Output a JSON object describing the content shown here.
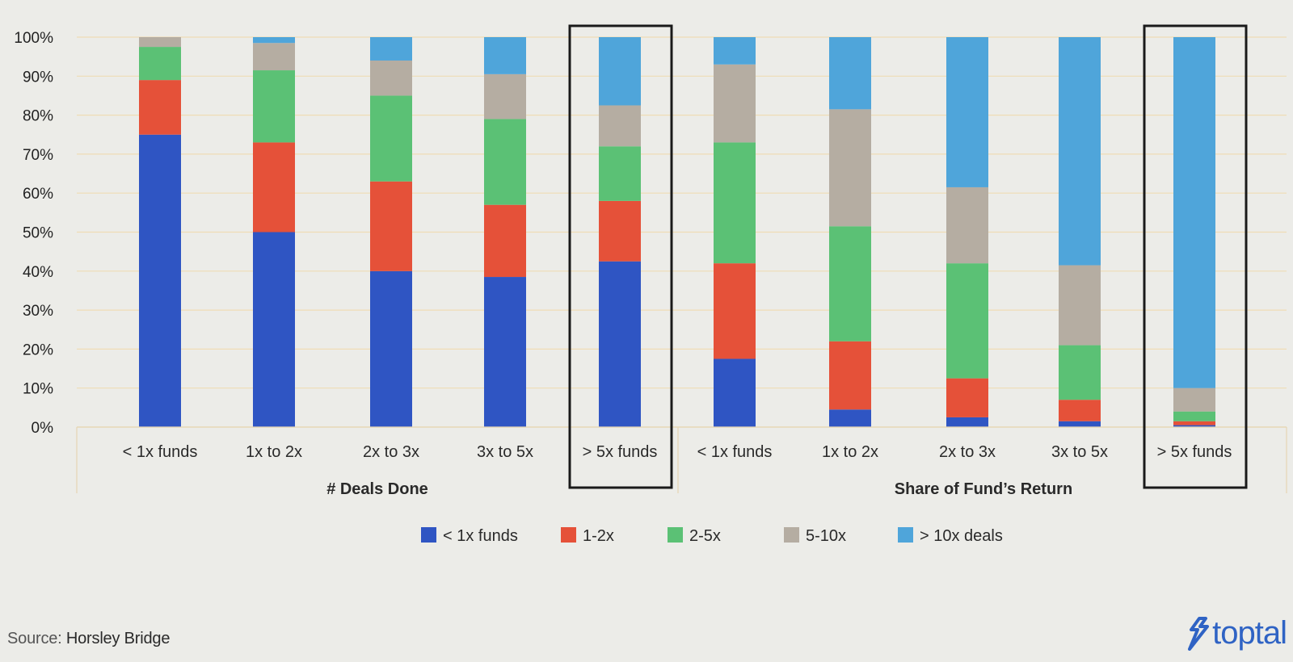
{
  "chart_data": {
    "type": "bar",
    "stacked": true,
    "normalized_percent": true,
    "ylim": [
      0,
      100
    ],
    "y_ticks": [
      "0%",
      "10%",
      "20%",
      "30%",
      "40%",
      "50%",
      "60%",
      "70%",
      "80%",
      "90%",
      "100%"
    ],
    "grid": true,
    "legend_position": "bottom",
    "groups": [
      {
        "label": "# Deals Done",
        "categories": [
          "< 1x funds",
          "1x to 2x",
          "2x to 3x",
          "3x to 5x",
          "> 5x funds"
        ],
        "highlight_index": 4
      },
      {
        "label": "Share of Fund’s Return",
        "categories": [
          "< 1x funds",
          "1x to 2x",
          "2x to 3x",
          "3x to 5x",
          "> 5x funds"
        ],
        "highlight_index": 4
      }
    ],
    "series": [
      {
        "name": "< 1x funds",
        "color": "#2f55c3",
        "values": [
          75,
          50,
          40,
          38.5,
          42.5,
          17.5,
          4.5,
          2.5,
          1.5,
          0.5
        ]
      },
      {
        "name": "1-2x",
        "color": "#e55139",
        "values": [
          14,
          23,
          23,
          18.5,
          15.5,
          24.5,
          17.5,
          10,
          5.5,
          1
        ]
      },
      {
        "name": "2-5x",
        "color": "#5bc175",
        "values": [
          8.5,
          18.5,
          22,
          22,
          14,
          31,
          29.5,
          29.5,
          14,
          2.5
        ]
      },
      {
        "name": "5-10x",
        "color": "#b5ada2",
        "values": [
          2.5,
          7,
          9,
          11.5,
          10.5,
          20,
          30,
          19.5,
          20.5,
          6
        ]
      },
      {
        "name": "> 10x deals",
        "color": "#4fa5da",
        "values": [
          0,
          1.5,
          6,
          9.5,
          17.5,
          7,
          18.5,
          38.5,
          58.5,
          90
        ]
      }
    ]
  },
  "footer": {
    "source_prefix": "Source: ",
    "source_name": "Horsley Bridge",
    "brand": "toptal",
    "brand_color": "#2f63c4"
  }
}
